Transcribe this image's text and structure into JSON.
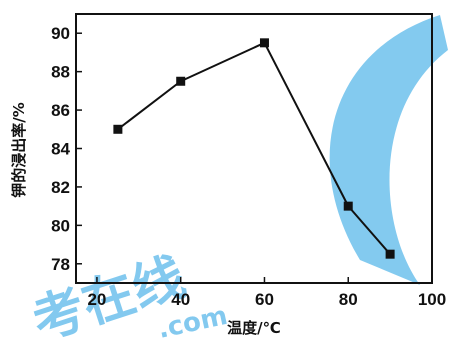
{
  "chart_data": {
    "type": "line",
    "x": [
      25,
      40,
      60,
      80,
      90
    ],
    "series": [
      {
        "values": [
          85.0,
          87.5,
          89.5,
          81.0,
          78.5
        ]
      }
    ],
    "xlabel": "温度/℃",
    "ylabel": "钾的浸出率/%",
    "xlim": [
      15,
      100
    ],
    "ylim": [
      77,
      91
    ],
    "x_ticks": [
      20,
      40,
      60,
      80,
      100
    ],
    "y_ticks": [
      78,
      80,
      82,
      84,
      86,
      88,
      90
    ],
    "grid": false,
    "marker": "square",
    "colors": {
      "line": "#111111",
      "watermark": "#5ab8ea"
    }
  }
}
